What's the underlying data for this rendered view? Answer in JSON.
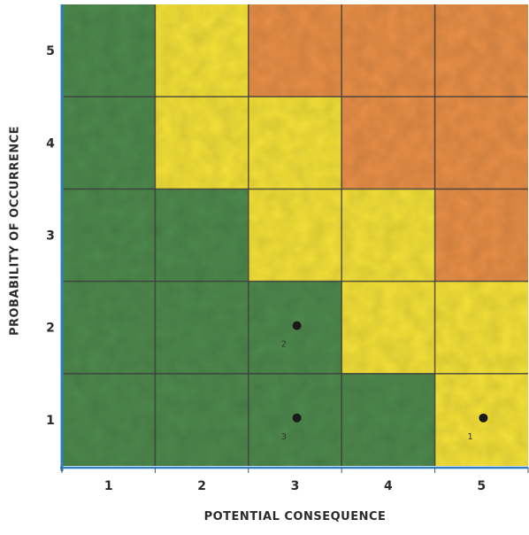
{
  "chart_data": {
    "type": "heatmap",
    "title": "",
    "xlabel": "POTENTIAL CONSEQUENCE",
    "ylabel": "PROBABILITY OF OCCURRENCE",
    "x_categories": [
      "1",
      "2",
      "3",
      "4",
      "5"
    ],
    "y_categories": [
      "1",
      "2",
      "3",
      "4",
      "5"
    ],
    "xlim": [
      1,
      5
    ],
    "ylim": [
      1,
      5
    ],
    "grid": true,
    "colors": {
      "low": "#4f8a50",
      "medium": "#f5e23a",
      "high": "#e9904a",
      "axis": "#2f7fc0",
      "gridline": "#3a3a3a",
      "point": "#1a1a1a"
    },
    "cells": [
      {
        "consequence": 1,
        "probability": 5,
        "rating": "low"
      },
      {
        "consequence": 2,
        "probability": 5,
        "rating": "medium"
      },
      {
        "consequence": 3,
        "probability": 5,
        "rating": "high"
      },
      {
        "consequence": 4,
        "probability": 5,
        "rating": "high"
      },
      {
        "consequence": 5,
        "probability": 5,
        "rating": "high"
      },
      {
        "consequence": 1,
        "probability": 4,
        "rating": "low"
      },
      {
        "consequence": 2,
        "probability": 4,
        "rating": "medium"
      },
      {
        "consequence": 3,
        "probability": 4,
        "rating": "medium"
      },
      {
        "consequence": 4,
        "probability": 4,
        "rating": "high"
      },
      {
        "consequence": 5,
        "probability": 4,
        "rating": "high"
      },
      {
        "consequence": 1,
        "probability": 3,
        "rating": "low"
      },
      {
        "consequence": 2,
        "probability": 3,
        "rating": "low"
      },
      {
        "consequence": 3,
        "probability": 3,
        "rating": "medium"
      },
      {
        "consequence": 4,
        "probability": 3,
        "rating": "medium"
      },
      {
        "consequence": 5,
        "probability": 3,
        "rating": "high"
      },
      {
        "consequence": 1,
        "probability": 2,
        "rating": "low"
      },
      {
        "consequence": 2,
        "probability": 2,
        "rating": "low"
      },
      {
        "consequence": 3,
        "probability": 2,
        "rating": "low"
      },
      {
        "consequence": 4,
        "probability": 2,
        "rating": "medium"
      },
      {
        "consequence": 5,
        "probability": 2,
        "rating": "medium"
      },
      {
        "consequence": 1,
        "probability": 1,
        "rating": "low"
      },
      {
        "consequence": 2,
        "probability": 1,
        "rating": "low"
      },
      {
        "consequence": 3,
        "probability": 1,
        "rating": "low"
      },
      {
        "consequence": 4,
        "probability": 1,
        "rating": "low"
      },
      {
        "consequence": 5,
        "probability": 1,
        "rating": "medium"
      }
    ],
    "points": [
      {
        "label": "1",
        "consequence": 5,
        "probability": 1
      },
      {
        "label": "2",
        "consequence": 3,
        "probability": 2
      },
      {
        "label": "3",
        "consequence": 3,
        "probability": 1
      }
    ]
  }
}
